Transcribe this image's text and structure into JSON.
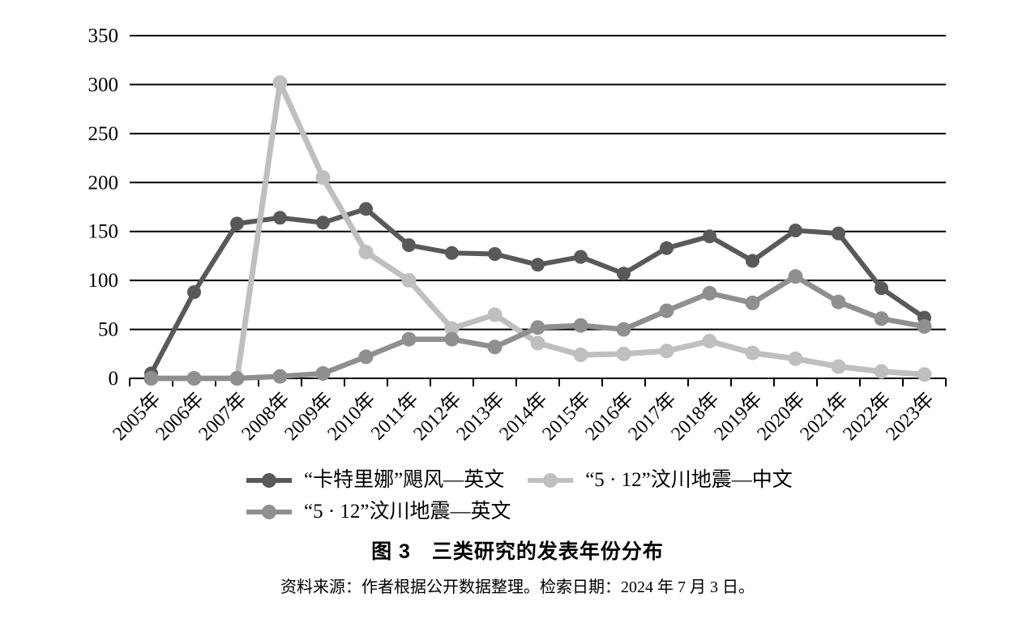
{
  "chart_data": {
    "type": "line",
    "title": "图 3　三类研究的发表年份分布",
    "xlabel": "",
    "ylabel": "",
    "ylim": [
      0,
      350
    ],
    "yticks": [
      0,
      50,
      100,
      150,
      200,
      250,
      300,
      350
    ],
    "grid": true,
    "legend_position": "bottom",
    "axis_color": "#000000",
    "categories": [
      "2005年",
      "2006年",
      "2007年",
      "2008年",
      "2009年",
      "2010年",
      "2011年",
      "2012年",
      "2013年",
      "2014年",
      "2015年",
      "2016年",
      "2017年",
      "2018年",
      "2019年",
      "2020年",
      "2021年",
      "2022年",
      "2023年"
    ],
    "series": [
      {
        "name": "“卡特里娜”飓风—英文",
        "color": "#595959",
        "line_width": 6,
        "marker_radius": 8.5,
        "values": [
          5,
          88,
          158,
          164,
          159,
          173,
          136,
          128,
          127,
          116,
          124,
          107,
          133,
          145,
          120,
          151,
          148,
          92,
          62
        ]
      },
      {
        "name": "“5 · 12”汶川地震—中文",
        "color": "#bfbfbf",
        "line_width": 7,
        "marker_radius": 9,
        "values": [
          0,
          0,
          0,
          302,
          205,
          129,
          100,
          51,
          65,
          36,
          24,
          25,
          28,
          38,
          26,
          20,
          12,
          7,
          4
        ]
      },
      {
        "name": "“5 · 12”汶川地震—英文",
        "color": "#8f8f8f",
        "line_width": 6.5,
        "marker_radius": 9,
        "values": [
          0,
          0,
          0,
          2,
          5,
          22,
          40,
          40,
          32,
          52,
          54,
          50,
          69,
          87,
          77,
          104,
          78,
          61,
          53
        ]
      }
    ]
  },
  "caption": {
    "title": "图 3　三类研究的发表年份分布"
  },
  "source": "资料来源：作者根据公开数据整理。检索日期：2024 年 7 月 3 日。"
}
